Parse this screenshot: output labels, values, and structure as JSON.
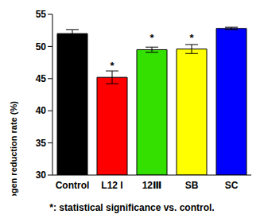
{
  "chart_data": {
    "type": "bar",
    "y_label": "Ammonia nitrogen reduction rate (%)",
    "categories": [
      "Control",
      "L12 I",
      "12Ⅲ",
      "SB",
      "SC"
    ],
    "values": [
      52.0,
      45.2,
      49.5,
      49.6,
      52.8
    ],
    "errors": [
      0.6,
      1.0,
      0.4,
      0.7,
      0.2
    ],
    "significance": [
      null,
      "*",
      "*",
      "*",
      null
    ],
    "colors": [
      "#000000",
      "#ff0000",
      "#33e000",
      "#ffff00",
      "#0000ff"
    ],
    "ylim": [
      30,
      55
    ],
    "yticks": [
      30,
      35,
      40,
      45,
      50,
      55
    ],
    "grid": false,
    "note": "*: statistical significance vs. control."
  }
}
